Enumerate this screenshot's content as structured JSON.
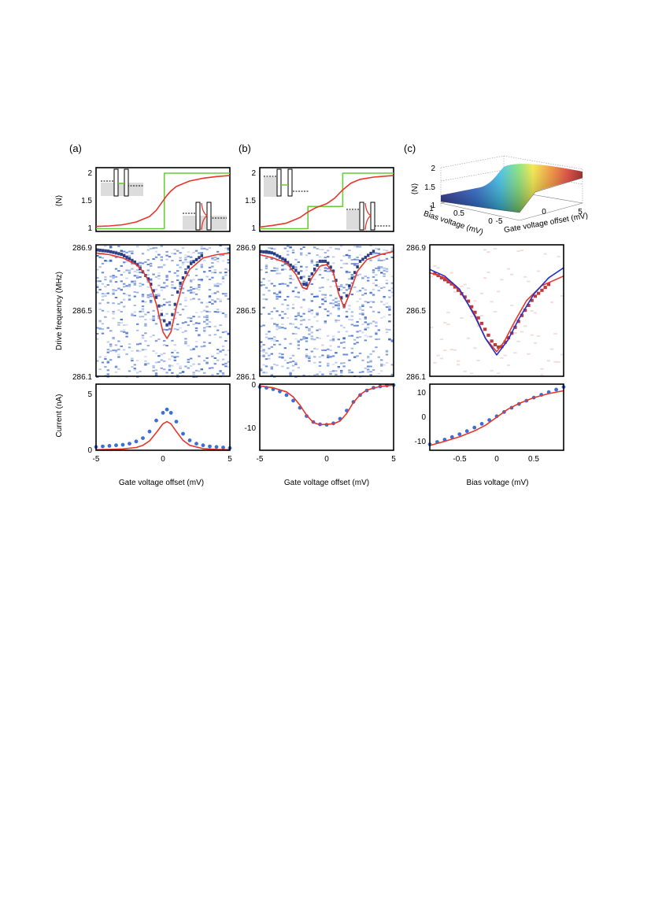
{
  "panel_labels": [
    "(a)",
    "(b)",
    "(c)"
  ],
  "colors": {
    "fit": "#e8352a",
    "step": "#66cc33",
    "dots": "#3a6fd8",
    "blue_line": "#2233cc",
    "map_blue": "#1a4fc0",
    "map_red": "#b01818",
    "frame": "#000000"
  },
  "axes": {
    "N_ylabel": "⟨N⟩",
    "freq_ylabel": "Drive frequency (MHz)",
    "current_ylabel": "Current (nA)",
    "gate_xlabel": "Gate voltage offset (mV)",
    "bias_xlabel": "Bias voltage (mV)",
    "surface_zlabel": "⟨N⟩",
    "surface_bias_label": "Bias voltage (mV)",
    "surface_gate_label": "Gate voltage offset (mV)"
  },
  "ticks": {
    "N": [
      "1",
      "1.5",
      "2"
    ],
    "freq": [
      "286.1",
      "286.5",
      "286.9"
    ],
    "gate": [
      "-5",
      "0",
      "5"
    ],
    "bias": [
      "-0.5",
      "0",
      "0.5"
    ],
    "current_a": [
      "0",
      "5"
    ],
    "current_b": [
      "0",
      "-10"
    ],
    "current_c": [
      "-10",
      "0",
      "10"
    ],
    "surface_z": [
      "2",
      "1.5",
      "1"
    ],
    "surface_bias": [
      "1",
      "0.5",
      "0"
    ],
    "surface_gate": [
      "-5",
      "0",
      "5"
    ]
  },
  "chart_data": [
    {
      "panel": "a-top",
      "type": "line",
      "xlim": [
        -5,
        5
      ],
      "ylim": [
        0.95,
        2.1
      ],
      "series": [
        {
          "color": "step",
          "x": [
            -5,
            0.1,
            0.1,
            5
          ],
          "y": [
            1,
            1,
            2,
            2
          ]
        },
        {
          "color": "fit",
          "x": [
            -5,
            -4,
            -3,
            -2,
            -1,
            -0.5,
            0,
            0.3,
            0.6,
            1,
            2,
            3,
            4,
            5
          ],
          "y": [
            1.04,
            1.05,
            1.07,
            1.12,
            1.22,
            1.33,
            1.5,
            1.6,
            1.68,
            1.76,
            1.86,
            1.91,
            1.94,
            1.96
          ]
        }
      ]
    },
    {
      "panel": "b-top",
      "type": "line",
      "xlim": [
        -5,
        5
      ],
      "ylim": [
        0.95,
        2.1
      ],
      "series": [
        {
          "color": "step",
          "x": [
            -5,
            -1.4,
            -1.4,
            1.2,
            1.2,
            5
          ],
          "y": [
            1,
            1,
            1.4,
            1.4,
            2,
            2
          ]
        },
        {
          "color": "fit",
          "x": [
            -5,
            -4,
            -3,
            -2,
            -1.4,
            -0.8,
            0,
            0.6,
            1.2,
            1.8,
            2.5,
            3.5,
            5
          ],
          "y": [
            1.03,
            1.06,
            1.1,
            1.2,
            1.3,
            1.38,
            1.45,
            1.55,
            1.7,
            1.82,
            1.89,
            1.93,
            1.96
          ]
        }
      ]
    },
    {
      "panel": "a-mid",
      "type": "heatmap",
      "xlim": [
        -5,
        5
      ],
      "ylim": [
        286.1,
        286.9
      ],
      "series": [
        {
          "color": "fit",
          "x": [
            -5,
            -4,
            -3,
            -2,
            -1.5,
            -1,
            -0.5,
            0,
            0.3,
            0.6,
            1,
            1.5,
            2,
            3,
            4,
            5
          ],
          "y": [
            286.85,
            286.84,
            286.82,
            286.78,
            286.74,
            286.67,
            286.54,
            286.37,
            286.33,
            286.37,
            286.52,
            286.67,
            286.75,
            286.82,
            286.84,
            286.85
          ]
        }
      ],
      "ridge": {
        "x": [
          -5,
          -4,
          -3,
          -2,
          -1,
          -0.5,
          0,
          0.4,
          0.8,
          1.2,
          2,
          3
        ],
        "y": [
          286.87,
          286.86,
          286.84,
          286.79,
          286.68,
          286.58,
          286.45,
          286.4,
          286.5,
          286.65,
          286.78,
          286.84
        ]
      }
    },
    {
      "panel": "b-mid",
      "type": "heatmap",
      "xlim": [
        -5,
        5
      ],
      "ylim": [
        286.1,
        286.9
      ],
      "series": [
        {
          "color": "fit",
          "x": [
            -5,
            -4,
            -3,
            -2.3,
            -1.8,
            -1.5,
            -1.1,
            -0.5,
            0,
            0.5,
            0.9,
            1.3,
            1.7,
            2.3,
            3,
            4,
            5
          ],
          "y": [
            286.84,
            286.82,
            286.79,
            286.72,
            286.64,
            286.63,
            286.7,
            286.77,
            286.78,
            286.73,
            286.6,
            286.52,
            286.6,
            286.74,
            286.81,
            286.84,
            286.86
          ]
        }
      ],
      "ridge": {
        "x": [
          -5,
          -4,
          -3,
          -2,
          -1.6,
          -1,
          -0.5,
          0,
          0.5,
          1,
          1.3,
          1.8,
          2.5,
          3.5
        ],
        "y": [
          286.86,
          286.85,
          286.8,
          286.72,
          286.64,
          286.74,
          286.8,
          286.8,
          286.74,
          286.6,
          286.53,
          286.68,
          286.8,
          286.86
        ]
      }
    },
    {
      "panel": "c-mid",
      "type": "heatmap",
      "xlim": [
        -0.9,
        0.9
      ],
      "ylim": [
        286.1,
        286.9
      ],
      "series": [
        {
          "color": "fit",
          "x": [
            -0.9,
            -0.7,
            -0.5,
            -0.3,
            -0.15,
            0,
            0.1,
            0.25,
            0.4,
            0.6,
            0.9
          ],
          "y": [
            286.73,
            286.7,
            286.62,
            286.48,
            286.33,
            286.25,
            286.31,
            286.44,
            286.56,
            286.65,
            286.71
          ]
        },
        {
          "color": "blue_line",
          "x": [
            -0.9,
            -0.7,
            -0.5,
            -0.3,
            -0.15,
            0,
            0.15,
            0.3,
            0.5,
            0.7,
            0.9
          ],
          "y": [
            286.75,
            286.71,
            286.63,
            286.47,
            286.33,
            286.23,
            286.32,
            286.45,
            286.6,
            286.7,
            286.76
          ]
        }
      ],
      "ridge": {
        "x": [
          -0.85,
          -0.6,
          -0.4,
          -0.2,
          -0.05,
          0.05,
          0.2,
          0.35,
          0.5,
          0.7
        ],
        "y": [
          286.73,
          286.66,
          286.57,
          286.42,
          286.3,
          286.27,
          286.36,
          286.48,
          286.58,
          286.66
        ]
      }
    },
    {
      "panel": "a-bottom",
      "type": "scatter",
      "xlim": [
        -5,
        5
      ],
      "ylim": [
        0,
        6
      ],
      "series": [
        {
          "color": "dots",
          "x": [
            -5,
            -4.5,
            -4,
            -3.5,
            -3,
            -2.5,
            -2,
            -1.5,
            -1,
            -0.5,
            0,
            0.3,
            0.6,
            1,
            1.5,
            2,
            2.5,
            3,
            3.5,
            4,
            4.5,
            5
          ],
          "y": [
            0.3,
            0.35,
            0.4,
            0.45,
            0.5,
            0.6,
            0.8,
            1.1,
            1.7,
            2.7,
            3.4,
            3.7,
            3.4,
            2.6,
            1.5,
            0.9,
            0.6,
            0.45,
            0.35,
            0.3,
            0.25,
            0.2
          ]
        },
        {
          "color": "fit",
          "x": [
            -5,
            -4,
            -3,
            -2,
            -1.5,
            -1,
            -0.5,
            0,
            0.3,
            0.6,
            1,
            1.5,
            2,
            3,
            4,
            5
          ],
          "y": [
            0.05,
            0.08,
            0.12,
            0.25,
            0.45,
            0.85,
            1.6,
            2.4,
            2.6,
            2.4,
            1.7,
            0.9,
            0.45,
            0.15,
            0.08,
            0.05
          ]
        }
      ]
    },
    {
      "panel": "b-bottom",
      "type": "scatter",
      "xlim": [
        -5,
        5
      ],
      "ylim": [
        -14.5,
        0
      ],
      "series": [
        {
          "color": "dots",
          "x": [
            -5,
            -4.5,
            -4,
            -3.5,
            -3,
            -2.5,
            -2,
            -1.5,
            -1,
            -0.5,
            0,
            0.5,
            1,
            1.5,
            2,
            2.5,
            3,
            3.5,
            4,
            4.5,
            5
          ],
          "y": [
            -0.6,
            -0.8,
            -1.1,
            -1.6,
            -2.4,
            -3.6,
            -5.2,
            -7,
            -8.3,
            -8.8,
            -8.9,
            -8.6,
            -7.6,
            -5.8,
            -3.9,
            -2.4,
            -1.4,
            -0.8,
            -0.5,
            -0.3,
            -0.2
          ]
        },
        {
          "color": "fit",
          "x": [
            -5,
            -4,
            -3,
            -2.5,
            -2,
            -1.5,
            -1,
            -0.5,
            0,
            0.5,
            1,
            1.5,
            2,
            2.5,
            3,
            4,
            5
          ],
          "y": [
            -0.4,
            -0.8,
            -1.7,
            -2.8,
            -4.6,
            -6.8,
            -8.4,
            -8.9,
            -8.8,
            -8.7,
            -8.1,
            -6.4,
            -4,
            -2.3,
            -1.3,
            -0.5,
            -0.2
          ]
        }
      ]
    },
    {
      "panel": "c-bottom",
      "type": "scatter",
      "xlim": [
        -0.9,
        0.9
      ],
      "ylim": [
        -14,
        14
      ],
      "series": [
        {
          "color": "dots",
          "x": [
            -0.9,
            -0.8,
            -0.7,
            -0.6,
            -0.5,
            -0.4,
            -0.3,
            -0.2,
            -0.1,
            0,
            0.1,
            0.2,
            0.3,
            0.4,
            0.5,
            0.6,
            0.7,
            0.8,
            0.9
          ],
          "y": [
            -11.5,
            -10.5,
            -9.5,
            -8.4,
            -7.2,
            -5.9,
            -4.4,
            -2.8,
            -1.2,
            0.4,
            2.2,
            4,
            5.6,
            7,
            8.3,
            9.5,
            10.6,
            11.7,
            12.8
          ]
        },
        {
          "color": "fit",
          "x": [
            -0.9,
            -0.7,
            -0.5,
            -0.3,
            -0.15,
            0,
            0.15,
            0.3,
            0.5,
            0.7,
            0.9
          ],
          "y": [
            -12,
            -10.2,
            -8.3,
            -5.8,
            -3.4,
            0,
            3.4,
            5.8,
            8.3,
            10,
            11.2
          ]
        }
      ]
    },
    {
      "panel": "c-top",
      "type": "area",
      "zlim": [
        1,
        2
      ],
      "x": [
        -5,
        0,
        5
      ],
      "bias": [
        0,
        0.5,
        1
      ]
    }
  ]
}
